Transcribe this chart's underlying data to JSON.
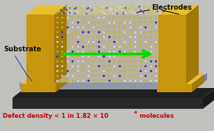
{
  "background_color": "#c0c0bc",
  "label_electrodes": "Electrodes",
  "label_substrate": "Substrate",
  "label_defect": "Defect density < 1 in 1.82 × 10",
  "label_defect_exp": "4",
  "label_defect_suffix": " molecules",
  "gold_front": "#c8960c",
  "gold_top": "#e8c030",
  "gold_side": "#a07808",
  "base_dark": "#181818",
  "base_side": "#282828",
  "substrate_top": "#b8bcc8",
  "substrate_side": "#8890a0",
  "crystal_bg": "#c0b8a8",
  "arrow_color": "#00dd00",
  "text_color_black": "#111111",
  "text_color_red": "#cc0000",
  "annotation_line_color": "#2244bb",
  "figsize": [
    3.08,
    1.89
  ],
  "dpi": 100
}
